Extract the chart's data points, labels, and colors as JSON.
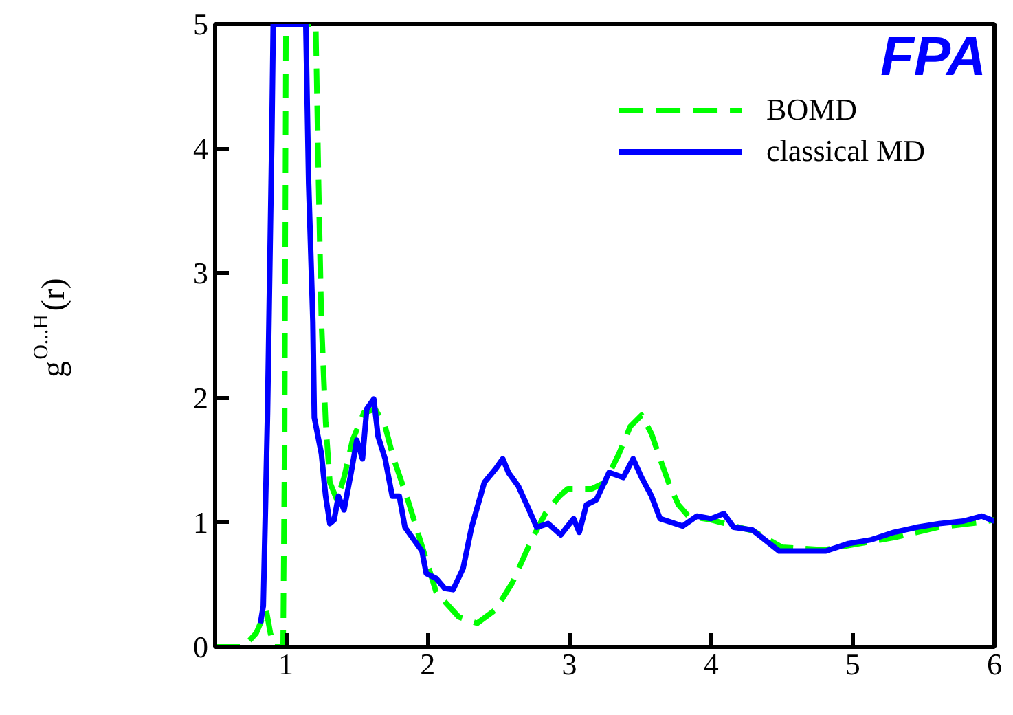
{
  "chart_data": {
    "type": "line",
    "ylabel": "g$^{O...H}$(r)",
    "annotations": [
      "FPA"
    ],
    "xlim": [
      0.5,
      6
    ],
    "xticks": [
      1,
      2,
      3,
      4,
      5,
      6
    ],
    "ylim": [
      0,
      5
    ],
    "yticks": [
      0,
      1,
      2,
      3,
      4,
      5
    ],
    "grid": false,
    "legend": "top right",
    "series": [
      {
        "name": "BOMD",
        "color": "#00ff00",
        "line_style": "dashed",
        "x": [
          0.5,
          0.7,
          0.79,
          0.86,
          0.89,
          0.92,
          0.98,
          0.99,
          1.0,
          1.21,
          1.23,
          1.25,
          1.28,
          1.31,
          1.36,
          1.41,
          1.47,
          1.55,
          1.63,
          1.7,
          1.76,
          1.86,
          1.96,
          2.06,
          2.22,
          2.35,
          2.48,
          2.6,
          2.73,
          2.83,
          2.93,
          2.99,
          3.16,
          3.25,
          3.35,
          3.43,
          3.51,
          3.58,
          3.64,
          3.71,
          3.77,
          3.84,
          4.0,
          4.3,
          4.5,
          4.8,
          5.0,
          5.3,
          5.6,
          5.9,
          6.0
        ],
        "values": [
          0,
          0,
          0.11,
          0.3,
          0.11,
          0,
          0,
          1.51,
          5,
          5,
          3.72,
          2.61,
          1.8,
          1.32,
          1.18,
          1.36,
          1.66,
          1.88,
          1.91,
          1.77,
          1.51,
          1.18,
          0.81,
          0.44,
          0.24,
          0.19,
          0.3,
          0.52,
          0.85,
          1.07,
          1.21,
          1.27,
          1.27,
          1.32,
          1.55,
          1.77,
          1.86,
          1.71,
          1.51,
          1.29,
          1.14,
          1.05,
          1.02,
          0.93,
          0.8,
          0.78,
          0.82,
          0.88,
          0.96,
          1.0,
          1.02
        ]
      },
      {
        "name": "classical MD",
        "color": "#0000ff",
        "line_style": "solid",
        "x": [
          0.82,
          0.84,
          0.87,
          0.9,
          0.91,
          1.14,
          1.16,
          1.19,
          1.2,
          1.25,
          1.28,
          1.31,
          1.34,
          1.37,
          1.41,
          1.46,
          1.5,
          1.54,
          1.57,
          1.62,
          1.65,
          1.7,
          1.75,
          1.8,
          1.84,
          1.89,
          1.96,
          1.99,
          2.06,
          2.12,
          2.18,
          2.25,
          2.31,
          2.4,
          2.48,
          2.53,
          2.57,
          2.64,
          2.7,
          2.77,
          2.85,
          2.94,
          3.03,
          3.07,
          3.12,
          3.19,
          3.28,
          3.38,
          3.45,
          3.51,
          3.58,
          3.64,
          3.8,
          3.9,
          4.0,
          4.09,
          4.16,
          4.29,
          4.39,
          4.48,
          4.64,
          4.81,
          4.97,
          5.13,
          5.29,
          5.45,
          5.61,
          5.78,
          5.91,
          6.0
        ],
        "values": [
          0.19,
          0.33,
          1.88,
          4.08,
          5,
          5,
          3.72,
          2.61,
          1.84,
          1.55,
          1.21,
          0.99,
          1.02,
          1.21,
          1.1,
          1.4,
          1.66,
          1.51,
          1.91,
          1.99,
          1.69,
          1.51,
          1.21,
          1.21,
          0.96,
          0.88,
          0.77,
          0.59,
          0.55,
          0.47,
          0.46,
          0.63,
          0.96,
          1.32,
          1.43,
          1.51,
          1.4,
          1.29,
          1.14,
          0.96,
          0.99,
          0.9,
          1.03,
          0.92,
          1.14,
          1.18,
          1.4,
          1.36,
          1.51,
          1.36,
          1.21,
          1.03,
          0.97,
          1.05,
          1.03,
          1.07,
          0.96,
          0.94,
          0.85,
          0.77,
          0.77,
          0.77,
          0.83,
          0.86,
          0.92,
          0.96,
          0.99,
          1.01,
          1.05,
          1.01
        ]
      }
    ]
  }
}
